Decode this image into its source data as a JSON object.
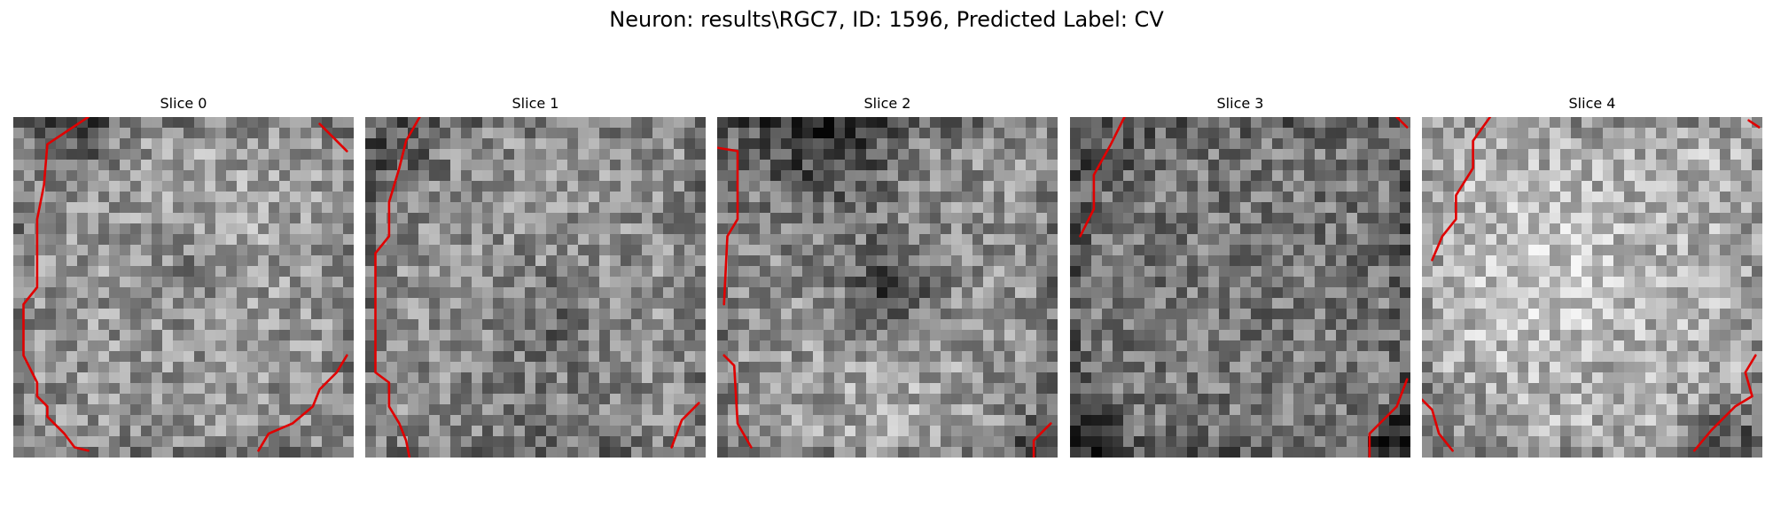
{
  "figure_title": "Neuron: results\\RGC7, ID: 1596, Predicted Label: CV",
  "contour_color": "#e00000",
  "colormap": "grayscale",
  "slices": [
    {
      "title": "Slice 0",
      "mean_brightness": 0.58
    },
    {
      "title": "Slice 1",
      "mean_brightness": 0.56
    },
    {
      "title": "Slice 2",
      "mean_brightness": 0.57
    },
    {
      "title": "Slice 3",
      "mean_brightness": 0.47
    },
    {
      "title": "Slice 4",
      "mean_brightness": 0.68
    }
  ]
}
